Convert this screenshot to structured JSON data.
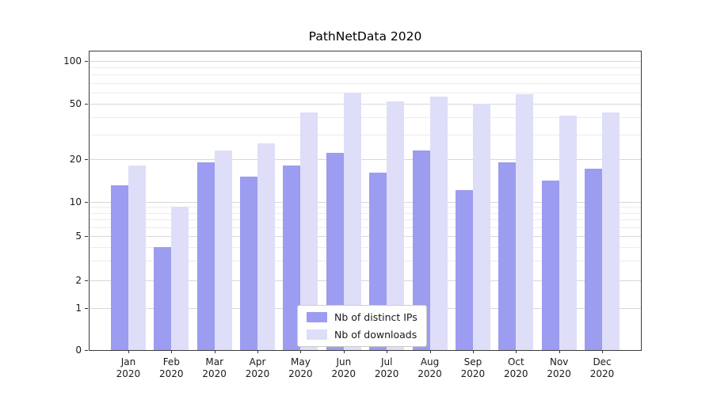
{
  "chart_data": {
    "type": "bar",
    "title": "PathNetData 2020",
    "categories": [
      "Jan",
      "Feb",
      "Mar",
      "Apr",
      "May",
      "Jun",
      "Jul",
      "Aug",
      "Sep",
      "Oct",
      "Nov",
      "Dec"
    ],
    "x_year": "2020",
    "series": [
      {
        "name": "Nb of distinct IPs",
        "color": "#9c9cf0",
        "values": [
          13,
          4,
          19,
          15,
          18,
          22,
          16,
          23,
          12,
          19,
          14,
          17
        ]
      },
      {
        "name": "Nb of downloads",
        "color": "#dedef9",
        "values": [
          18,
          9,
          23,
          26,
          43,
          60,
          52,
          56,
          50,
          58,
          41,
          43
        ]
      }
    ],
    "yscale": "symlog",
    "yticks": [
      0,
      1,
      2,
      5,
      10,
      20,
      50,
      100
    ],
    "minor_yticks": [
      3,
      4,
      6,
      7,
      8,
      9,
      30,
      40,
      60,
      70,
      80,
      90
    ],
    "ylim": [
      0,
      115
    ],
    "grid": true,
    "legend_position": "lower center"
  }
}
